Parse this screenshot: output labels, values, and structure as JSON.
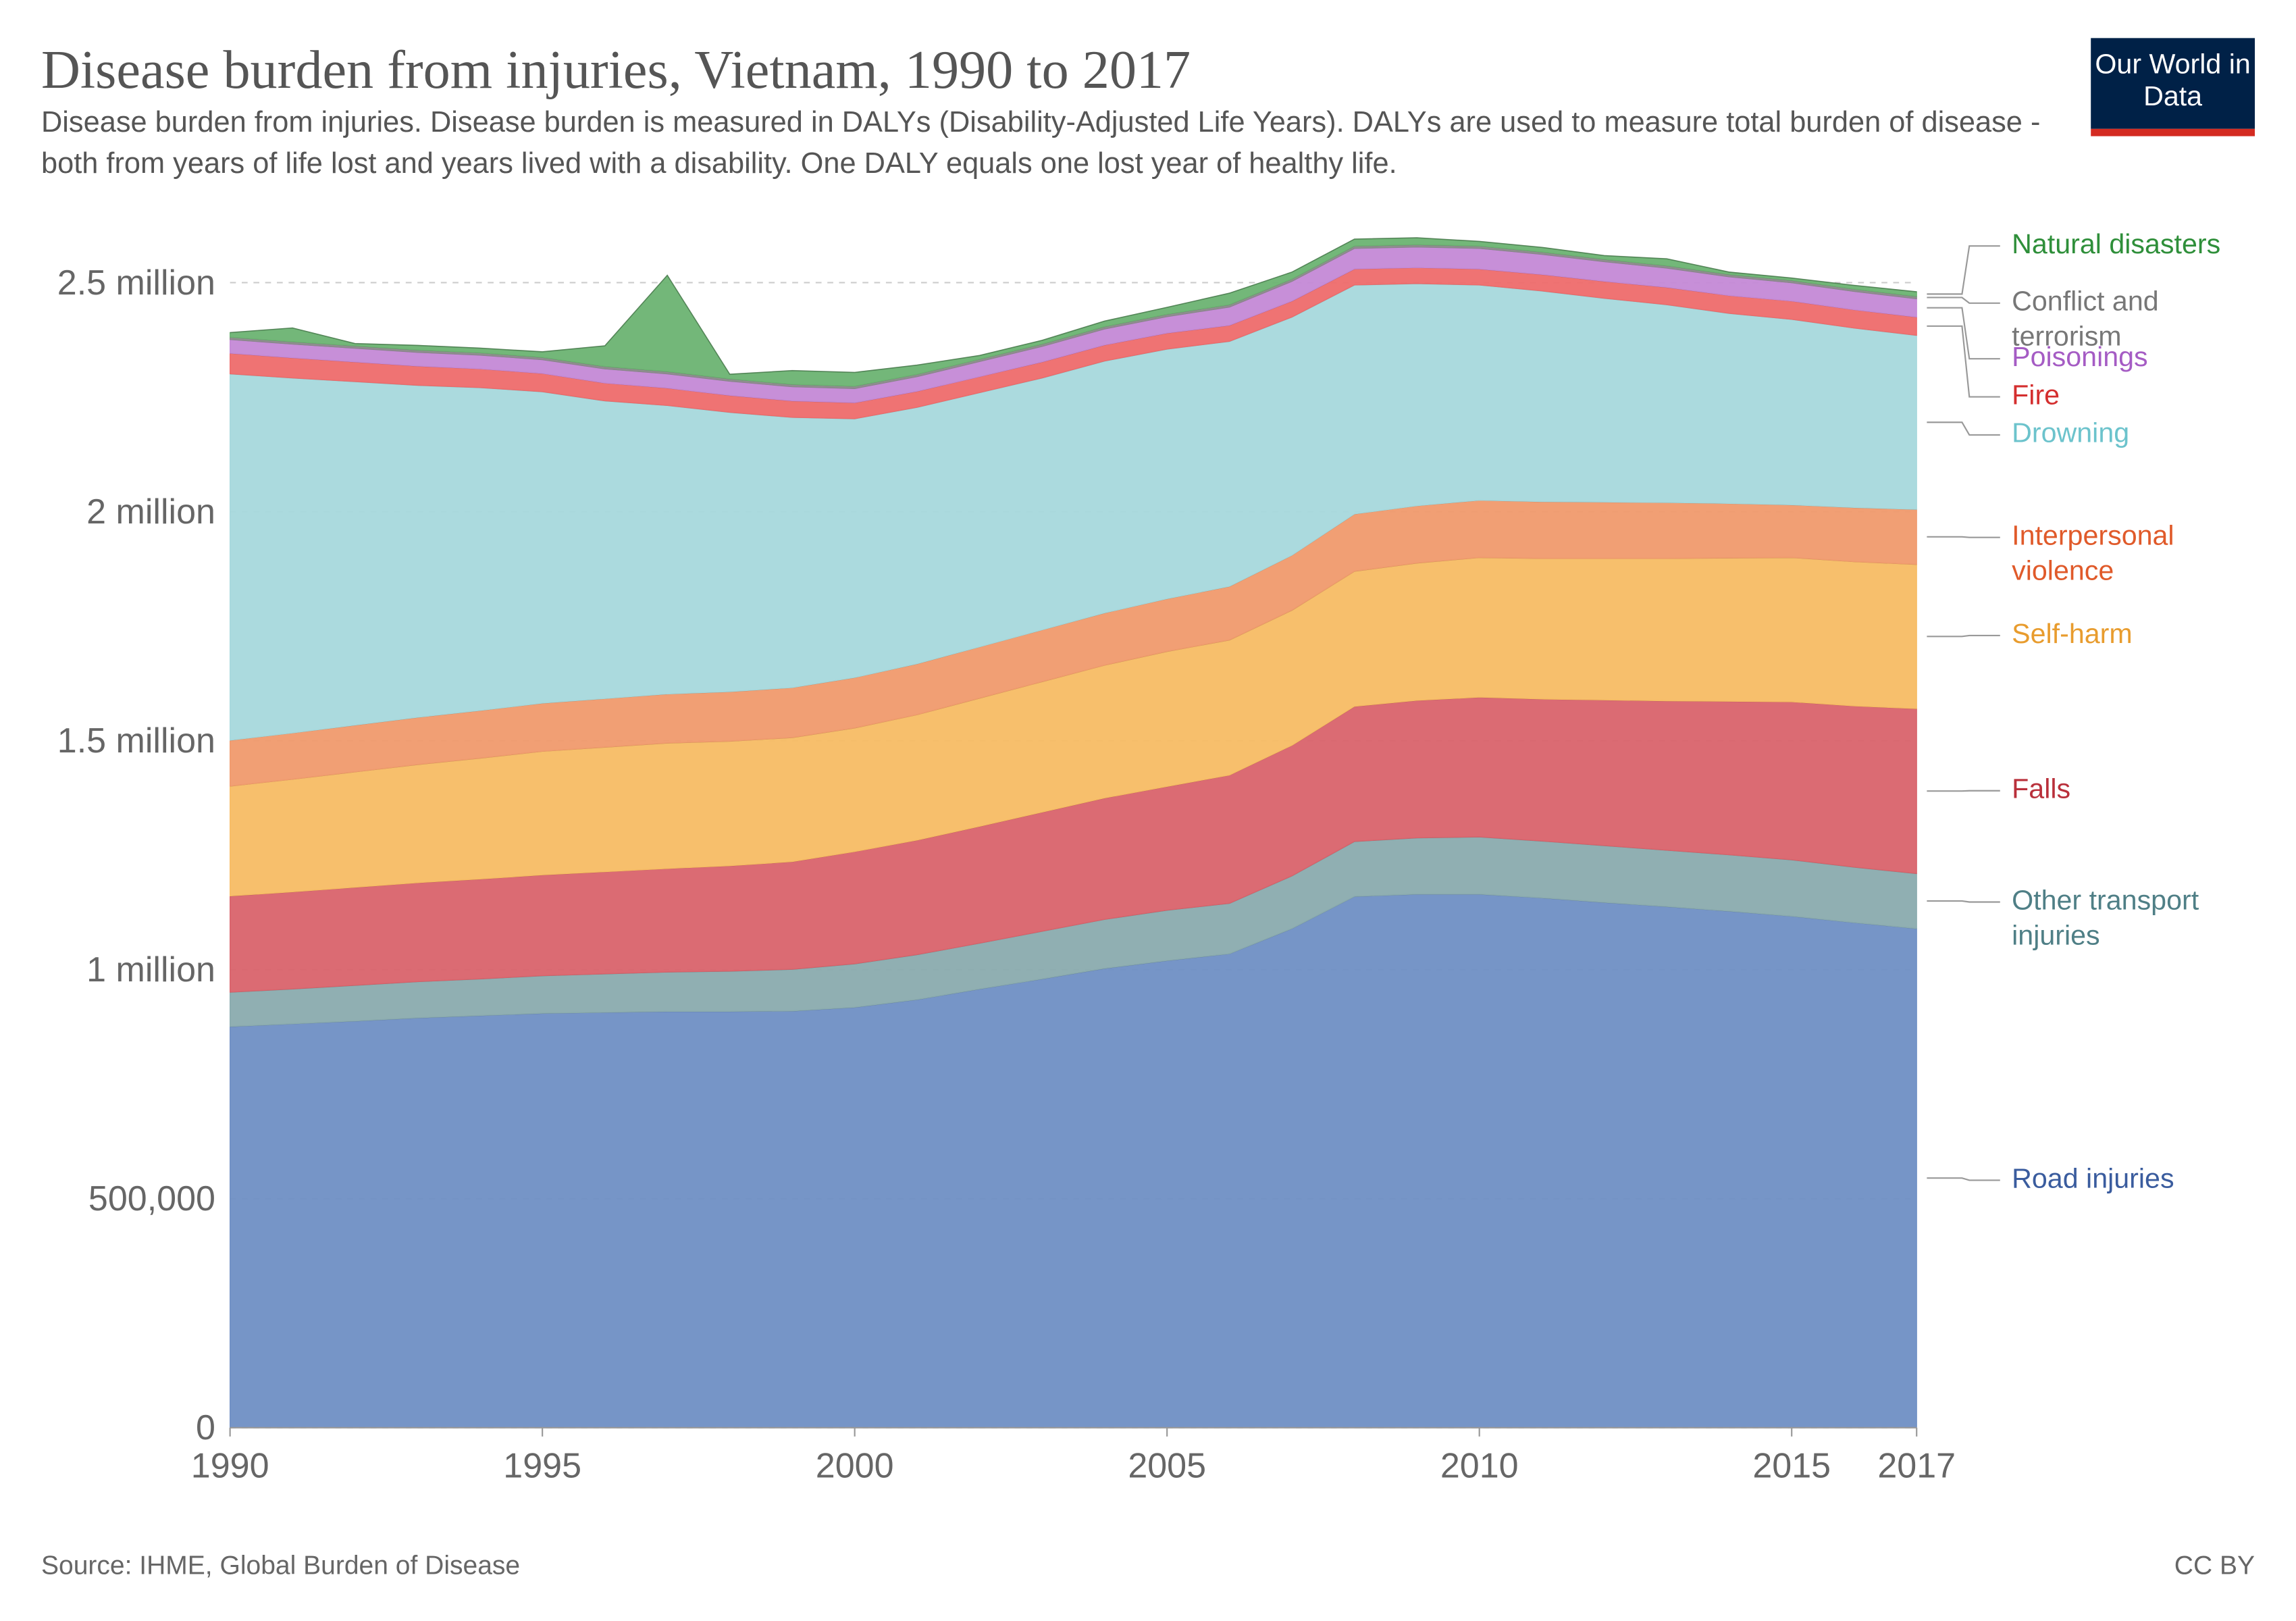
{
  "chart_data": {
    "type": "stacked-area",
    "title": "Disease burden from injuries, Vietnam, 1990 to 2017",
    "subtitle": "Disease burden from injuries. Disease burden is measured in DALYs (Disability-Adjusted Life Years). DALYs are used to measure total burden of disease - both from years of life lost and years lived with a disability. One DALY equals one lost year of healthy life.",
    "logo": "Our World in Data",
    "source": "Source: IHME, Global Burden of Disease",
    "license": "CC BY",
    "x": [
      1990,
      1991,
      1992,
      1993,
      1994,
      1995,
      1996,
      1997,
      1998,
      1999,
      2000,
      2001,
      2002,
      2003,
      2004,
      2005,
      2006,
      2007,
      2008,
      2009,
      2010,
      2011,
      2012,
      2013,
      2014,
      2015,
      2016,
      2017
    ],
    "xlim": [
      1990,
      2017
    ],
    "xticks": [
      1990,
      1995,
      2000,
      2005,
      2010,
      2015,
      2017
    ],
    "ylim": [
      0,
      2500000
    ],
    "yticks": [
      0,
      {
        "value": 500000,
        "label": "500,000"
      },
      {
        "value": 1000000,
        "label": "1 million"
      },
      {
        "value": 1500000,
        "label": "1.5 million"
      },
      {
        "value": 2000000,
        "label": "2 million"
      },
      {
        "value": 2500000,
        "label": "2.5 million"
      }
    ],
    "grid": true,
    "series": [
      {
        "name": "Road injuries",
        "color": "#6f8fc4",
        "label_color": "#3a5c9e",
        "values": [
          876000,
          882000,
          888000,
          895000,
          900000,
          905000,
          907000,
          909000,
          909000,
          910000,
          918000,
          935000,
          958000,
          980000,
          1003000,
          1020000,
          1035000,
          1090000,
          1160000,
          1165000,
          1165000,
          1157000,
          1147000,
          1138000,
          1128000,
          1117000,
          1103000,
          1090000
        ]
      },
      {
        "name": "Other transport injuries",
        "color": "#8aabae",
        "label_color": "#4f7f86",
        "values": [
          75000,
          76000,
          78000,
          79000,
          80000,
          82000,
          84000,
          86000,
          88000,
          91000,
          95000,
          98000,
          100000,
          104000,
          107000,
          110000,
          110000,
          115000,
          120000,
          123000,
          125000,
          124000,
          124000,
          123000,
          123000,
          123000,
          121000,
          120000
        ]
      },
      {
        "name": "Falls",
        "color": "#d9636b",
        "label_color": "#b9303b",
        "values": [
          210000,
          212000,
          214000,
          216000,
          218000,
          220000,
          223000,
          226000,
          230000,
          235000,
          245000,
          250000,
          255000,
          260000,
          265000,
          270000,
          280000,
          285000,
          295000,
          300000,
          305000,
          310000,
          318000,
          326000,
          335000,
          345000,
          352000,
          360000
        ]
      },
      {
        "name": "Self-harm",
        "color": "#f7bc64",
        "label_color": "#e89c2e",
        "values": [
          240000,
          246000,
          252000,
          258000,
          264000,
          270000,
          272000,
          274000,
          272000,
          271000,
          270000,
          274000,
          280000,
          285000,
          290000,
          295000,
          295000,
          295000,
          295000,
          300000,
          305000,
          307000,
          309000,
          311000,
          313000,
          315000,
          315000,
          315000
        ]
      },
      {
        "name": "Interpersonal violence",
        "color": "#f09a6d",
        "label_color": "#e05a2a",
        "values": [
          100000,
          101000,
          102000,
          103000,
          104000,
          105000,
          106000,
          107000,
          108000,
          109000,
          110000,
          111000,
          112000,
          113000,
          114000,
          115000,
          117000,
          120000,
          125000,
          125000,
          125000,
          124000,
          123000,
          122000,
          119000,
          115000,
          118000,
          120000
        ]
      },
      {
        "name": "Drowning",
        "color": "#a6d8dc",
        "label_color": "#6cc3cc",
        "values": [
          800000,
          775000,
          750000,
          725000,
          705000,
          680000,
          650000,
          630000,
          610000,
          590000,
          565000,
          560000,
          555000,
          550000,
          550000,
          545000,
          535000,
          520000,
          500000,
          485000,
          470000,
          460000,
          445000,
          432000,
          415000,
          405000,
          392000,
          380000
        ]
      },
      {
        "name": "Fire",
        "color": "#ee6b6b",
        "label_color": "#d42f2f",
        "values": [
          45000,
          44000,
          43000,
          42000,
          41000,
          40000,
          39000,
          38000,
          37000,
          36000,
          35000,
          35000,
          35000,
          35000,
          35000,
          35000,
          35000,
          35000,
          35000,
          35000,
          35000,
          36000,
          37000,
          38000,
          39000,
          40000,
          40000,
          40000
        ]
      },
      {
        "name": "Poisonings",
        "color": "#c489d6",
        "label_color": "#a55cc4",
        "values": [
          30000,
          30000,
          30000,
          30000,
          30000,
          30000,
          31000,
          31000,
          31000,
          31000,
          31000,
          32000,
          33000,
          34000,
          35000,
          36000,
          40000,
          43000,
          45000,
          45000,
          45000,
          44000,
          43000,
          42000,
          41000,
          40000,
          40000,
          40000
        ]
      },
      {
        "name": "Conflict and terrorism",
        "color": "#8a8a8a",
        "label_color": "#777777",
        "values": [
          5000,
          5000,
          5000,
          5000,
          5000,
          5000,
          5000,
          5000,
          5000,
          5000,
          5000,
          5000,
          5000,
          5000,
          5000,
          5000,
          5000,
          5000,
          5000,
          5000,
          5000,
          5000,
          5000,
          5000,
          5000,
          5000,
          5000,
          5000
        ]
      },
      {
        "name": "Natural disasters",
        "color": "#6cb372",
        "label_color": "#2f8f3a",
        "values": [
          10000,
          30000,
          5000,
          10000,
          10000,
          12000,
          45000,
          210000,
          10000,
          30000,
          30000,
          20000,
          8000,
          8000,
          12000,
          15000,
          25000,
          15000,
          15000,
          15000,
          10000,
          10000,
          8000,
          15000,
          5000,
          5000,
          8000,
          10000
        ]
      }
    ]
  }
}
